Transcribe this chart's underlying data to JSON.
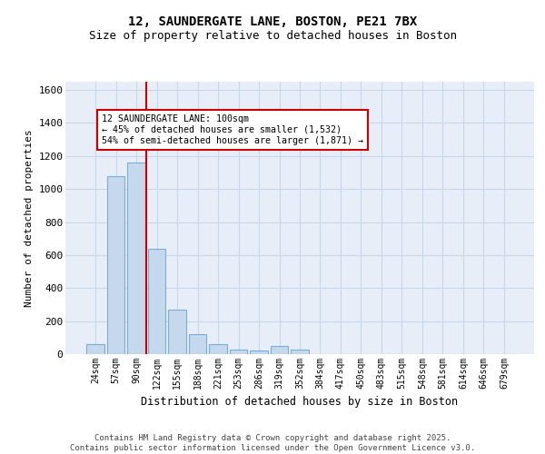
{
  "title1": "12, SAUNDERGATE LANE, BOSTON, PE21 7BX",
  "title2": "Size of property relative to detached houses in Boston",
  "xlabel": "Distribution of detached houses by size in Boston",
  "ylabel": "Number of detached properties",
  "bar_color": "#c5d8ee",
  "bar_edge_color": "#7aafd4",
  "grid_color": "#c8d8e8",
  "bg_color": "#e8eef8",
  "annotation_box_color": "#cc0000",
  "vline_color": "#cc0000",
  "categories": [
    "24sqm",
    "57sqm",
    "90sqm",
    "122sqm",
    "155sqm",
    "188sqm",
    "221sqm",
    "253sqm",
    "286sqm",
    "319sqm",
    "352sqm",
    "384sqm",
    "417sqm",
    "450sqm",
    "483sqm",
    "515sqm",
    "548sqm",
    "581sqm",
    "614sqm",
    "646sqm",
    "679sqm"
  ],
  "values": [
    60,
    1080,
    1160,
    640,
    270,
    120,
    60,
    30,
    20,
    50,
    30,
    0,
    0,
    0,
    0,
    0,
    0,
    0,
    0,
    0,
    0
  ],
  "ylim": [
    0,
    1650
  ],
  "yticks": [
    0,
    200,
    400,
    600,
    800,
    1000,
    1200,
    1400,
    1600
  ],
  "vline_position": 2.5,
  "annotation_line1": "12 SAUNDERGATE LANE: 100sqm",
  "annotation_line2": "← 45% of detached houses are smaller (1,532)",
  "annotation_line3": "54% of semi-detached houses are larger (1,871) →",
  "footer1": "Contains HM Land Registry data © Crown copyright and database right 2025.",
  "footer2": "Contains public sector information licensed under the Open Government Licence v3.0."
}
